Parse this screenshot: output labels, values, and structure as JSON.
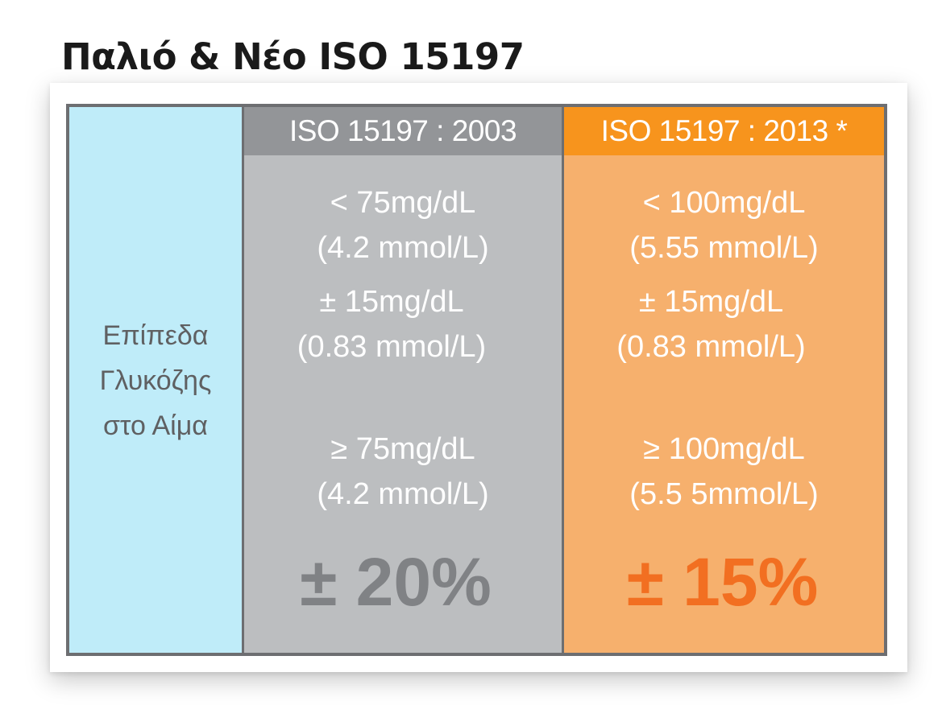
{
  "title": "Παλιό & Νέο ISO 15197",
  "row_label": [
    "Επίπεδα",
    "Γλυκόζης",
    "στο Αίμα"
  ],
  "columns": [
    {
      "header": "ISO 15197 : 2003",
      "low_threshold": [
        "< 75mg/dL",
        "(4.2 mmol/L)"
      ],
      "low_tolerance": [
        "± 15mg/dL",
        "(0.83 mmol/L)"
      ],
      "high_threshold": [
        "≥ 75mg/dL",
        "(4.2 mmol/L)"
      ],
      "high_tolerance": "± 20%"
    },
    {
      "header": "ISO 15197 : 2013 *",
      "low_threshold": [
        "< 100mg/dL",
        "(5.55 mmol/L)"
      ],
      "low_tolerance": [
        "± 15mg/dL",
        "(0.83 mmol/L)"
      ],
      "high_threshold": [
        "≥ 100mg/dL",
        "(5.5 5mmol/L)"
      ],
      "high_tolerance": "± 15%"
    }
  ],
  "colors": {
    "label_column_bg": "#bfecf9",
    "old_header_bg": "#939598",
    "old_column_bg": "#bcbec0",
    "old_percent": "#808285",
    "new_header_bg": "#f7941d",
    "new_column_bg": "#f6b06d",
    "new_percent": "#f26f21",
    "border": "#6d6e71"
  }
}
